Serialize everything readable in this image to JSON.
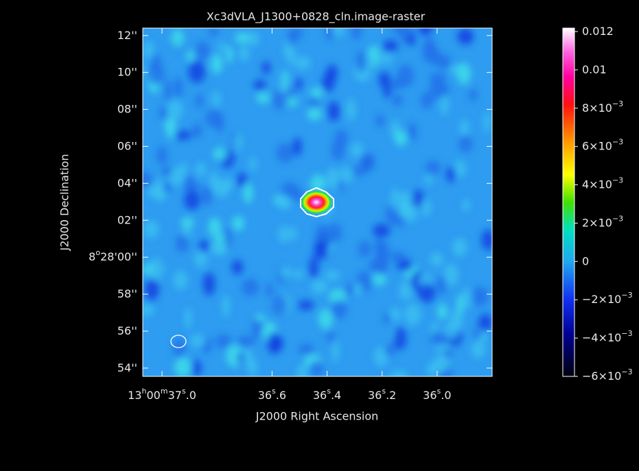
{
  "chart_data": {
    "type": "image",
    "title": "Xc3dVLA_J1300+0828_cln.image-raster",
    "x_label": "J2000 Right Ascension",
    "y_label": "J2000 Declination",
    "xlim": [
      37.07,
      35.8
    ],
    "xticks": [
      {
        "value": 37.0,
        "label": [
          "13",
          "h",
          "00",
          "m",
          "37",
          "s",
          ".0"
        ]
      },
      {
        "value": 36.6,
        "label": [
          "36",
          "s",
          ".6"
        ]
      },
      {
        "value": 36.4,
        "label": [
          "36",
          "s",
          ".4"
        ]
      },
      {
        "value": 36.2,
        "label": [
          "36",
          "s",
          ".2"
        ]
      },
      {
        "value": 36.0,
        "label": [
          "36",
          "s",
          ".0"
        ]
      }
    ],
    "ylim": [
      -6.45,
      12.4
    ],
    "yticks": [
      {
        "value": 12,
        "label": [
          "12''"
        ]
      },
      {
        "value": 10,
        "label": [
          "10''"
        ]
      },
      {
        "value": 8,
        "label": [
          "08''"
        ]
      },
      {
        "value": 6,
        "label": [
          "06''"
        ]
      },
      {
        "value": 4,
        "label": [
          "04''"
        ]
      },
      {
        "value": 2,
        "label": [
          "02''"
        ]
      },
      {
        "value": 0,
        "label": [
          "8",
          "o",
          "28'00''"
        ]
      },
      {
        "value": -2,
        "label": [
          "58''"
        ]
      },
      {
        "value": -4,
        "label": [
          "56''"
        ]
      },
      {
        "value": -6,
        "label": [
          "54''"
        ]
      }
    ],
    "colorbar_lim": [
      -0.006,
      0.01218
    ],
    "colorbar_ticks": [
      {
        "value": 0.012,
        "label": [
          "0.012"
        ]
      },
      {
        "value": 0.01,
        "label": [
          "0.01"
        ]
      },
      {
        "value": 0.008,
        "label": [
          "8×10",
          "−3"
        ]
      },
      {
        "value": 0.006,
        "label": [
          "6×10",
          "−3"
        ]
      },
      {
        "value": 0.004,
        "label": [
          "4×10",
          "−3"
        ]
      },
      {
        "value": 0.002,
        "label": [
          "2×10",
          "−3"
        ]
      },
      {
        "value": 0,
        "label": [
          "0"
        ]
      },
      {
        "value": -0.002,
        "label": [
          "−2×10",
          "−3"
        ]
      },
      {
        "value": -0.004,
        "label": [
          "−4×10",
          "−3"
        ]
      },
      {
        "value": -0.006,
        "label": [
          "−6×10",
          "−3"
        ]
      }
    ]
  }
}
